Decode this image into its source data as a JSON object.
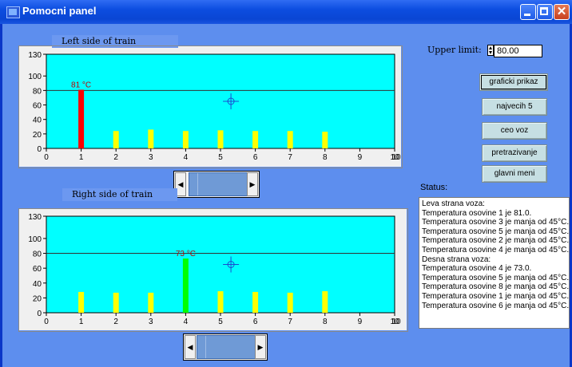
{
  "window": {
    "title": "Pomocni panel"
  },
  "charts": [
    {
      "label": "Left side of train",
      "annotation": "81 °C"
    },
    {
      "label": "Right side of train",
      "annotation": "73 °C"
    }
  ],
  "chart_data": [
    {
      "type": "bar",
      "title": "Left side of train",
      "x": [
        1,
        2,
        3,
        4,
        5,
        6,
        7,
        8
      ],
      "values": [
        81,
        24,
        26,
        24,
        25,
        24,
        24,
        23
      ],
      "highlight_index": 0,
      "highlight_color": "#ff0000",
      "bar_color": "#ffff00",
      "background": "#00ffff",
      "xlim": [
        0,
        10
      ],
      "ylim": [
        0,
        130
      ],
      "x_ticks": [
        "0",
        "1",
        "2",
        "3",
        "4",
        "5",
        "6",
        "7",
        "8",
        "9",
        "10"
      ],
      "x_end_label": "10",
      "y_ticks": [
        "0",
        "20",
        "40",
        "60",
        "80",
        "100",
        "130"
      ],
      "reference_line": 80,
      "annotation": "81 °C",
      "cursor": [
        5.3,
        65
      ],
      "grid": false
    },
    {
      "type": "bar",
      "title": "Right side of train",
      "x": [
        1,
        2,
        3,
        4,
        5,
        6,
        7,
        8
      ],
      "values": [
        28,
        27,
        27,
        73,
        29,
        28,
        27,
        29
      ],
      "highlight_index": 3,
      "highlight_color": "#00ff00",
      "bar_color": "#ffff00",
      "background": "#00ffff",
      "xlim": [
        0,
        10
      ],
      "ylim": [
        0,
        130
      ],
      "x_ticks": [
        "0",
        "1",
        "2",
        "3",
        "4",
        "5",
        "6",
        "7",
        "8",
        "9",
        "10"
      ],
      "x_end_label": "10",
      "y_ticks": [
        "0",
        "20",
        "40",
        "60",
        "80",
        "100",
        "130"
      ],
      "reference_line": 80,
      "annotation": "73 °C",
      "cursor": [
        5.3,
        65
      ],
      "grid": false
    }
  ],
  "scrollbars": [
    {
      "position": 0.06
    },
    {
      "position": 0.06
    }
  ],
  "controls": {
    "upper_limit_label": "Upper limit:",
    "upper_limit_value": "80.00",
    "buttons": [
      "graficki prikaz",
      "najvecih 5",
      "ceo voz",
      "pretrazivanje",
      "glavni meni"
    ],
    "status_label": "Status:"
  },
  "status_lines": [
    "Leva strana voza:",
    "Temperatura osovine 1 je 81.0.",
    "Temperatura osovine 3 je manja od 45°C.",
    "Temperatura osovine 5 je manja od 45°C.",
    "Temperatura osovine 2 je manja od 45°C.",
    "Temperatura osovine 4 je manja od 45°C.",
    "Desna strana voza:",
    "Temperatura osovine 4 je 73.0.",
    "Temperatura osovine 5 je manja od 45°C.",
    "Temperatura osovine 8 je manja od 45°C.",
    "Temperatura osovine 1 je manja od 45°C.",
    "Temperatura osovine 6 je manja od 45°C."
  ]
}
